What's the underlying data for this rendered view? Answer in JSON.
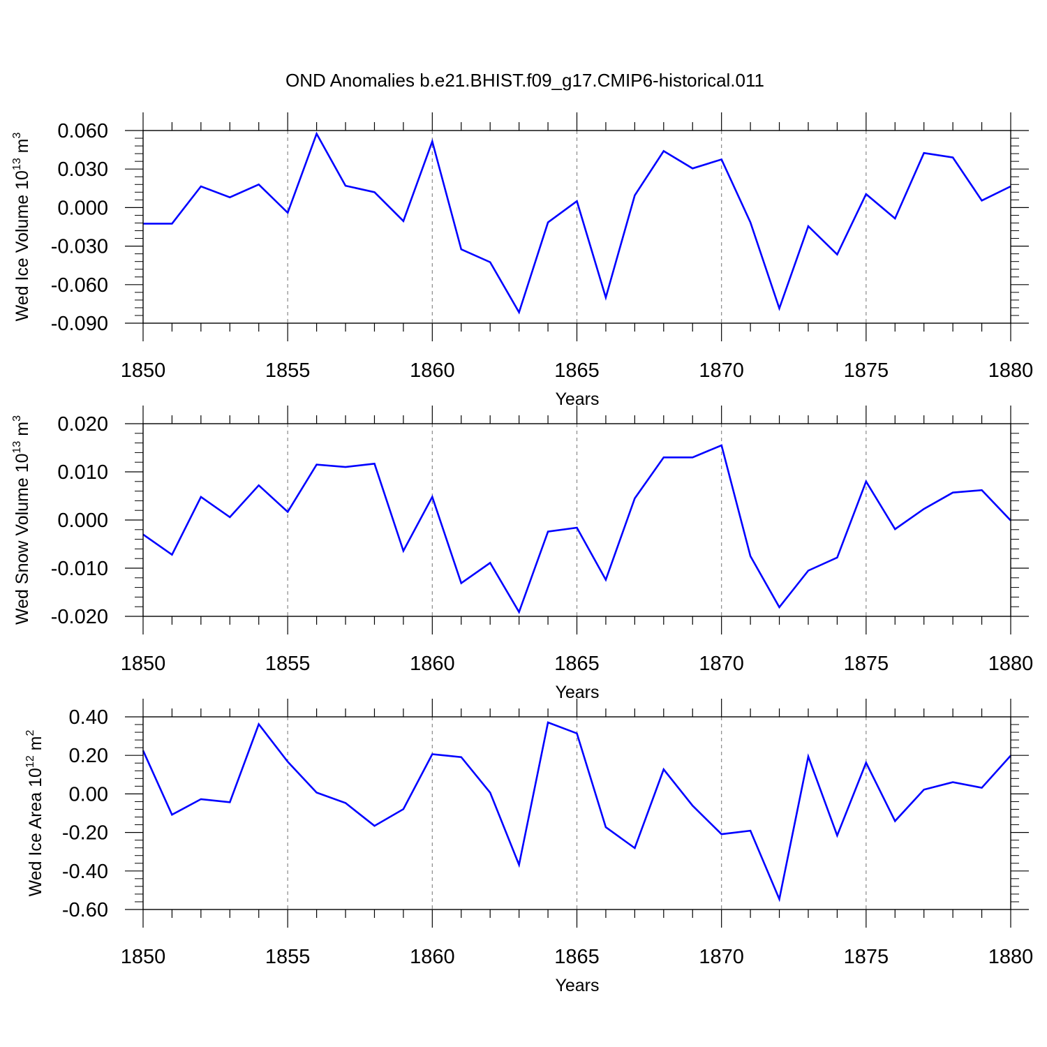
{
  "title": "OND Anomalies b.e21.BHIST.f09_g17.CMIP6-historical.011",
  "colors": {
    "line": "#0000ff",
    "axis": "#000000",
    "grid": "#888888",
    "background": "#ffffff"
  },
  "chart_data": [
    {
      "type": "line",
      "ylabel_main": "Wed Ice Volume 10",
      "ylabel_exp": "13",
      "ylabel_unit": " m",
      "ylabel_unit_exp": "3",
      "xlabel": "Years",
      "xlim": [
        1850,
        1880
      ],
      "ylim": [
        -0.09,
        0.06
      ],
      "yticks": [
        -0.09,
        -0.06,
        -0.03,
        0.0,
        0.03,
        0.06
      ],
      "ytick_labels": [
        "-0.090",
        "-0.060",
        "-0.030",
        "0.000",
        "0.030",
        "0.060"
      ],
      "xticks": [
        1850,
        1855,
        1860,
        1865,
        1870,
        1875,
        1880
      ],
      "xtick_labels": [
        "1850",
        "1855",
        "1860",
        "1865",
        "1870",
        "1875",
        "1880"
      ],
      "grid": "vertical dashed at major x ticks",
      "series": [
        {
          "x": [
            1850,
            1851,
            1852,
            1853,
            1854,
            1855,
            1856,
            1857,
            1858,
            1859,
            1860,
            1861,
            1862,
            1863,
            1864,
            1865,
            1866,
            1867,
            1868,
            1869,
            1870,
            1871,
            1872,
            1873,
            1874,
            1875,
            1876,
            1877,
            1878,
            1879,
            1880
          ],
          "values": [
            -0.0125,
            -0.0125,
            0.0165,
            0.008,
            0.018,
            -0.004,
            0.0575,
            0.017,
            0.012,
            -0.0105,
            0.0515,
            -0.0325,
            -0.0425,
            -0.0815,
            -0.0115,
            0.005,
            -0.07,
            0.0095,
            0.044,
            0.0305,
            0.0375,
            -0.0115,
            -0.0785,
            -0.0145,
            -0.0365,
            0.0105,
            -0.0085,
            0.0425,
            0.039,
            0.0055,
            0.0165
          ]
        }
      ]
    },
    {
      "type": "line",
      "ylabel_main": "Wed Snow Volume 10",
      "ylabel_exp": "13",
      "ylabel_unit": " m",
      "ylabel_unit_exp": "3",
      "xlabel": "Years",
      "xlim": [
        1850,
        1880
      ],
      "ylim": [
        -0.02,
        0.02
      ],
      "yticks": [
        -0.02,
        -0.01,
        0.0,
        0.01,
        0.02
      ],
      "ytick_labels": [
        "-0.020",
        "-0.010",
        "0.000",
        "0.010",
        "0.020"
      ],
      "xticks": [
        1850,
        1855,
        1860,
        1865,
        1870,
        1875,
        1880
      ],
      "xtick_labels": [
        "1850",
        "1855",
        "1860",
        "1865",
        "1870",
        "1875",
        "1880"
      ],
      "grid": "vertical dashed at major x ticks",
      "series": [
        {
          "x": [
            1850,
            1851,
            1852,
            1853,
            1854,
            1855,
            1856,
            1857,
            1858,
            1859,
            1860,
            1861,
            1862,
            1863,
            1864,
            1865,
            1866,
            1867,
            1868,
            1869,
            1870,
            1871,
            1872,
            1873,
            1874,
            1875,
            1876,
            1877,
            1878,
            1879,
            1880
          ],
          "values": [
            -0.003,
            -0.0072,
            0.0048,
            0.0006,
            0.0072,
            0.0017,
            0.0115,
            0.011,
            0.0117,
            -0.0064,
            0.0048,
            -0.0131,
            -0.0089,
            -0.0191,
            -0.0024,
            -0.0016,
            -0.0124,
            0.0045,
            0.013,
            0.013,
            0.0155,
            -0.0075,
            -0.0181,
            -0.0105,
            -0.0078,
            0.008,
            -0.0019,
            0.0023,
            0.0057,
            0.0062,
            -0.0001
          ]
        }
      ]
    },
    {
      "type": "line",
      "ylabel_main": "Wed Ice Area 10",
      "ylabel_exp": "12",
      "ylabel_unit": " m",
      "ylabel_unit_exp": "2",
      "xlabel": "Years",
      "xlim": [
        1850,
        1880
      ],
      "ylim": [
        -0.6,
        0.4
      ],
      "yticks": [
        -0.6,
        -0.4,
        -0.2,
        0.0,
        0.2,
        0.4
      ],
      "ytick_labels": [
        "-0.60",
        "-0.40",
        "-0.20",
        "0.00",
        "0.20",
        "0.40"
      ],
      "xticks": [
        1850,
        1855,
        1860,
        1865,
        1870,
        1875,
        1880
      ],
      "xtick_labels": [
        "1850",
        "1855",
        "1860",
        "1865",
        "1870",
        "1875",
        "1880"
      ],
      "grid": "vertical dashed at major x ticks",
      "series": [
        {
          "x": [
            1850,
            1851,
            1852,
            1853,
            1854,
            1855,
            1856,
            1857,
            1858,
            1859,
            1860,
            1861,
            1862,
            1863,
            1864,
            1865,
            1866,
            1867,
            1868,
            1869,
            1870,
            1871,
            1872,
            1873,
            1874,
            1875,
            1876,
            1877,
            1878,
            1879,
            1880
          ],
          "values": [
            0.225,
            -0.108,
            -0.027,
            -0.043,
            0.362,
            0.167,
            0.007,
            -0.047,
            -0.166,
            -0.079,
            0.206,
            0.191,
            0.007,
            -0.368,
            0.371,
            0.314,
            -0.173,
            -0.281,
            0.127,
            -0.061,
            -0.209,
            -0.191,
            -0.546,
            0.194,
            -0.216,
            0.162,
            -0.141,
            0.022,
            0.061,
            0.032,
            0.199
          ]
        }
      ]
    }
  ]
}
